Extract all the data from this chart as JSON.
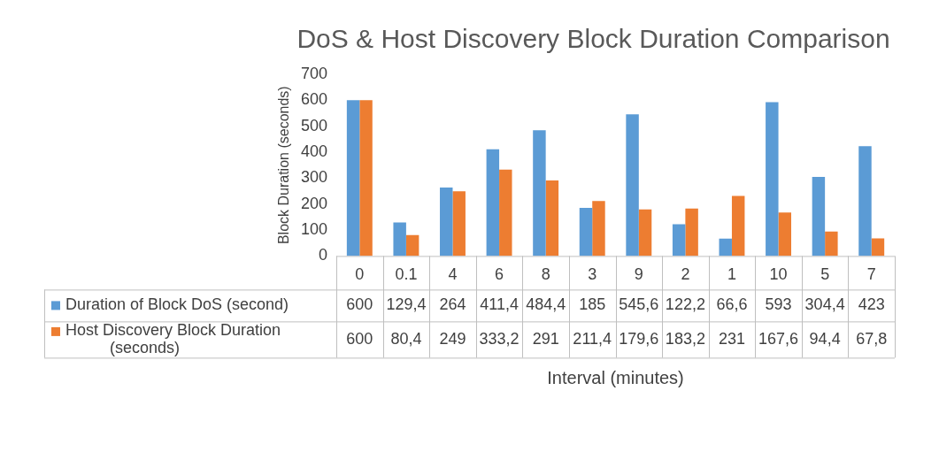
{
  "chart_data": {
    "type": "bar",
    "title": "DoS & Host Discovery Block Duration Comparison",
    "xlabel": "Interval (minutes)",
    "ylabel": "Block Duration (seconds)",
    "categories": [
      "0",
      "0.1",
      "4",
      "6",
      "8",
      "3",
      "9",
      "2",
      "1",
      "10",
      "5",
      "7"
    ],
    "series": [
      {
        "name": "Duration of Block DoS (second)",
        "color": "#5b9bd5",
        "values": [
          600,
          129.4,
          264,
          411.4,
          484.4,
          185,
          545.6,
          122.2,
          66.6,
          593,
          304.4,
          423
        ],
        "value_labels": [
          "600",
          "129,4",
          "264",
          "411,4",
          "484,4",
          "185",
          "545,6",
          "122,2",
          "66,6",
          "593",
          "304,4",
          "423"
        ]
      },
      {
        "name": "Host Discovery Block Duration (seconds)",
        "color": "#ed7d31",
        "values": [
          600,
          80.4,
          249,
          333.2,
          291,
          211.4,
          179.6,
          183.2,
          231,
          167.6,
          94.4,
          67.8
        ],
        "value_labels": [
          "600",
          "80,4",
          "249",
          "333,2",
          "291",
          "211,4",
          "179,6",
          "183,2",
          "231",
          "167,6",
          "94,4",
          "67,8"
        ]
      }
    ],
    "ylim": [
      0,
      700
    ],
    "yticks": [
      0,
      100,
      200,
      300,
      400,
      500,
      600,
      700
    ],
    "grid": false,
    "legend": "bottom"
  }
}
